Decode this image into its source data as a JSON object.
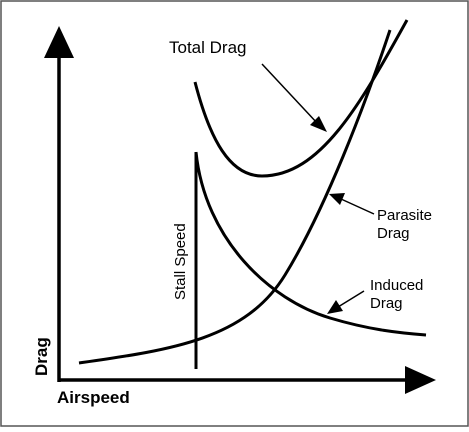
{
  "chart_data": {
    "type": "line",
    "xlabel": "Airspeed",
    "ylabel": "Drag",
    "series": [
      {
        "name": "Total Drag"
      },
      {
        "name": "Parasite Drag"
      },
      {
        "name": "Induced Drag"
      }
    ],
    "annotations": {
      "stall_speed": "Stall Speed",
      "total_drag": "Total Drag",
      "parasite_line1": "Parasite",
      "parasite_line2": "Drag",
      "induced_line1": "Induced",
      "induced_line2": "Drag"
    }
  }
}
